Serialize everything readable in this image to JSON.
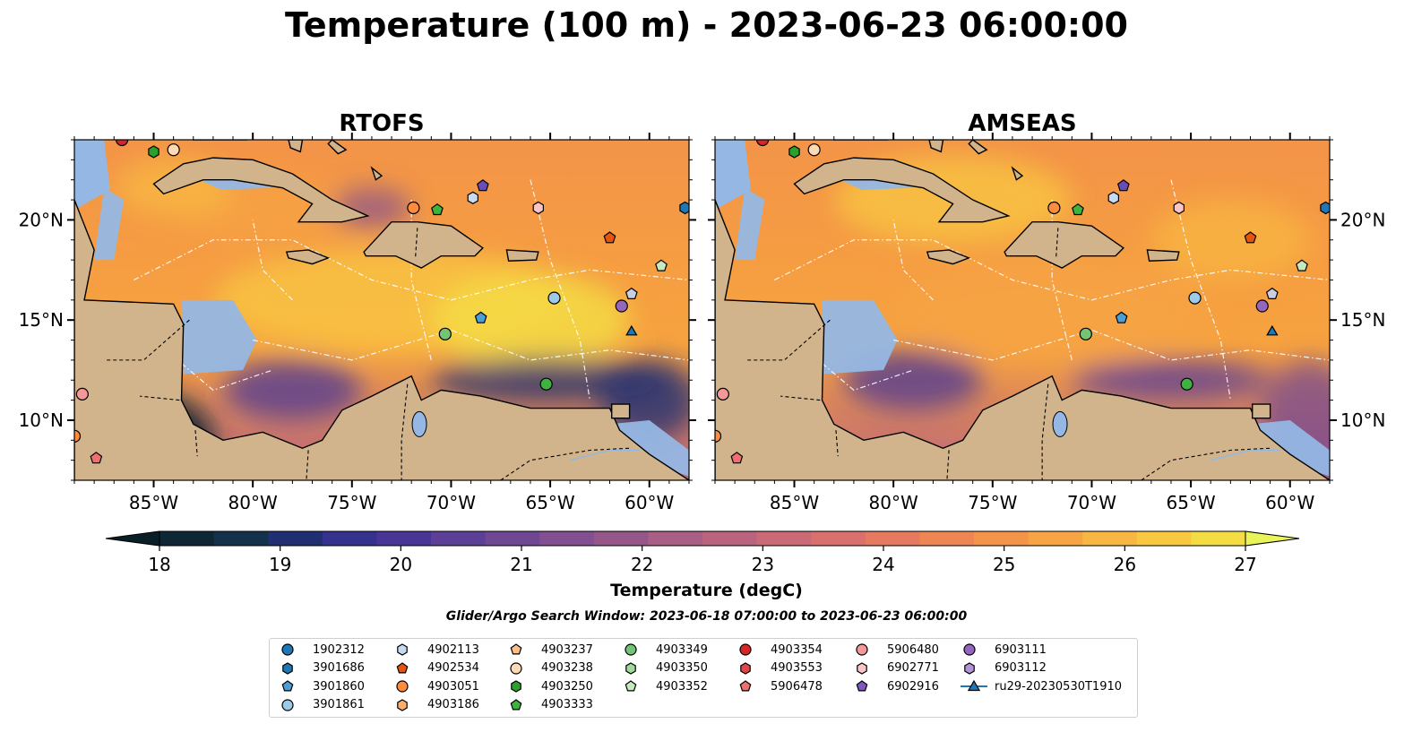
{
  "title": "Temperature (100 m) - 2023-06-23 06:00:00",
  "panels": [
    {
      "title": "RTOFS",
      "ticks_left": true
    },
    {
      "title": "AMSEAS",
      "ticks_left": false
    }
  ],
  "axes": {
    "lon_range": [
      -89.0,
      -58.0
    ],
    "lat_range": [
      7.0,
      24.0
    ],
    "lon_ticks": [
      {
        "value": -85,
        "label": "85°W"
      },
      {
        "value": -80,
        "label": "80°W"
      },
      {
        "value": -75,
        "label": "75°W"
      },
      {
        "value": -70,
        "label": "70°W"
      },
      {
        "value": -65,
        "label": "65°W"
      },
      {
        "value": -60,
        "label": "60°W"
      }
    ],
    "lat_ticks": [
      {
        "value": 10,
        "label": "10°N"
      },
      {
        "value": 15,
        "label": "15°N"
      },
      {
        "value": 20,
        "label": "20°N"
      }
    ]
  },
  "colorbar": {
    "label": "Temperature (degC)",
    "min": 18,
    "max": 27,
    "ticks": [
      "18",
      "19",
      "20",
      "21",
      "22",
      "23",
      "24",
      "25",
      "26",
      "27"
    ],
    "colors": [
      "#0d2834",
      "#14314b",
      "#202f72",
      "#34318f",
      "#493596",
      "#5c3f96",
      "#6f4793",
      "#824f90",
      "#955789",
      "#a85e85",
      "#b9637f",
      "#ca6a77",
      "#d9706e",
      "#e57a61",
      "#ee8653",
      "#f39448",
      "#f6a444",
      "#f8b642",
      "#f7c840",
      "#f4dd44"
    ],
    "under_color": "#0a1e27",
    "over_color": "#e9f35a"
  },
  "search_window": "Glider/Argo Search Window: 2023-06-18 07:00:00 to 2023-06-23 06:00:00",
  "colors": {
    "land": "#d2b48c",
    "ocean": "#95b7e4",
    "field_cool": "#8c4b92",
    "field_warm": "#f7a33f"
  },
  "legend": [
    {
      "name": "1902312",
      "marker": "circle",
      "color": "#1f77b4"
    },
    {
      "name": "3901686",
      "marker": "hexagon",
      "color": "#1f77b4"
    },
    {
      "name": "3901860",
      "marker": "pentagon",
      "color": "#4c9ed6"
    },
    {
      "name": "3901861",
      "marker": "circle",
      "color": "#9ecae9"
    },
    {
      "name": "4902113",
      "marker": "hexagon",
      "color": "#c6dbef"
    },
    {
      "name": "4902534",
      "marker": "pentagon",
      "color": "#e6550d"
    },
    {
      "name": "4903051",
      "marker": "circle",
      "color": "#fd8d3c"
    },
    {
      "name": "4903186",
      "marker": "hexagon",
      "color": "#fdae6b"
    },
    {
      "name": "4903237",
      "marker": "pentagon",
      "color": "#fdc08a"
    },
    {
      "name": "4903238",
      "marker": "circle",
      "color": "#fdd9b5"
    },
    {
      "name": "4903250",
      "marker": "hexagon",
      "color": "#2ca02c"
    },
    {
      "name": "4903333",
      "marker": "pentagon",
      "color": "#3fb33f"
    },
    {
      "name": "4903349",
      "marker": "circle",
      "color": "#74c476"
    },
    {
      "name": "4903350",
      "marker": "hexagon",
      "color": "#a1d99b"
    },
    {
      "name": "4903352",
      "marker": "pentagon",
      "color": "#c7e9c0"
    },
    {
      "name": "4903354",
      "marker": "circle",
      "color": "#d62728"
    },
    {
      "name": "4903553",
      "marker": "hexagon",
      "color": "#e04848"
    },
    {
      "name": "5906478",
      "marker": "pentagon",
      "color": "#f07070"
    },
    {
      "name": "5906480",
      "marker": "circle",
      "color": "#f4999a"
    },
    {
      "name": "6902771",
      "marker": "hexagon",
      "color": "#fcc5c5"
    },
    {
      "name": "6902916",
      "marker": "pentagon",
      "color": "#7e57c2"
    },
    {
      "name": "6903111",
      "marker": "circle",
      "color": "#9467bd"
    },
    {
      "name": "6903112",
      "marker": "hexagon",
      "color": "#b294d8"
    },
    {
      "name": "ru29-20230530T1910",
      "marker": "triangle-line",
      "color": "#1f77b4"
    }
  ],
  "platforms": [
    {
      "marker": "circle",
      "color": "#d62728",
      "lon": -86.6,
      "lat": 24.0
    },
    {
      "marker": "hexagon",
      "color": "#2ca02c",
      "lon": -85.0,
      "lat": 23.4
    },
    {
      "marker": "circle",
      "color": "#fdd9b5",
      "lon": -84.0,
      "lat": 23.5
    },
    {
      "marker": "hexagon",
      "color": "#c6dbef",
      "lon": -68.9,
      "lat": 21.1
    },
    {
      "marker": "pentagon",
      "color": "#6a4bb8",
      "lon": -68.4,
      "lat": 21.7
    },
    {
      "marker": "circle",
      "color": "#fd8d3c",
      "lon": -71.9,
      "lat": 20.6
    },
    {
      "marker": "pentagon",
      "color": "#3fb33f",
      "lon": -70.7,
      "lat": 20.5
    },
    {
      "marker": "hexagon",
      "color": "#fcc5c5",
      "lon": -65.6,
      "lat": 20.6
    },
    {
      "marker": "hexagon",
      "color": "#1f77b4",
      "lon": -58.2,
      "lat": 20.6
    },
    {
      "marker": "pentagon",
      "color": "#e6550d",
      "lon": -62.0,
      "lat": 19.1
    },
    {
      "marker": "pentagon",
      "color": "#c7e9c0",
      "lon": -59.4,
      "lat": 17.7
    },
    {
      "marker": "circle",
      "color": "#9ecae9",
      "lon": -64.8,
      "lat": 16.1
    },
    {
      "marker": "pentagon",
      "color": "#c7cfe0",
      "lon": -60.9,
      "lat": 16.3
    },
    {
      "marker": "circle",
      "color": "#9467bd",
      "lon": -61.4,
      "lat": 15.7
    },
    {
      "marker": "pentagon",
      "color": "#4c9ed6",
      "lon": -68.5,
      "lat": 15.1
    },
    {
      "marker": "circle",
      "color": "#74c476",
      "lon": -70.3,
      "lat": 14.3
    },
    {
      "marker": "triangle",
      "color": "#1f77b4",
      "lon": -60.9,
      "lat": 14.4
    },
    {
      "marker": "circle",
      "color": "#3fb33f",
      "lon": -65.2,
      "lat": 11.8
    },
    {
      "marker": "circle",
      "color": "#f4999a",
      "lon": -88.6,
      "lat": 11.3
    },
    {
      "marker": "pentagon",
      "color": "#f07070",
      "lon": -87.9,
      "lat": 8.1
    },
    {
      "marker": "circle",
      "color": "#fd8d3c",
      "lon": -89.0,
      "lat": 9.2
    }
  ]
}
